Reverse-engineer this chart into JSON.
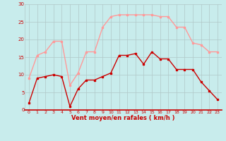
{
  "hours": [
    0,
    1,
    2,
    3,
    4,
    5,
    6,
    7,
    8,
    9,
    10,
    11,
    12,
    13,
    14,
    15,
    16,
    17,
    18,
    19,
    20,
    21,
    22,
    23
  ],
  "wind_avg": [
    2,
    9,
    9.5,
    10,
    9.5,
    1,
    6,
    8.5,
    8.5,
    9.5,
    10.5,
    15.5,
    15.5,
    16,
    13,
    16.5,
    14.5,
    14.5,
    11.5,
    11.5,
    11.5,
    8,
    5.5,
    3
  ],
  "wind_gust": [
    9,
    15.5,
    16.5,
    19.5,
    19.5,
    7,
    10.5,
    16.5,
    16.5,
    23.5,
    26.5,
    27,
    27,
    27,
    27,
    27,
    26.5,
    26.5,
    23.5,
    23.5,
    19,
    18.5,
    16.5,
    16.5
  ],
  "bg_color": "#c8ecec",
  "grid_color": "#b0c8c8",
  "avg_color": "#cc0000",
  "gust_color": "#ff9999",
  "xlabel": "Vent moyen/en rafales ( km/h )",
  "xlabel_color": "#cc0000",
  "ylim": [
    0,
    30
  ],
  "yticks": [
    0,
    5,
    10,
    15,
    20,
    25,
    30
  ],
  "xticks": [
    0,
    1,
    2,
    3,
    4,
    5,
    6,
    7,
    8,
    9,
    10,
    11,
    12,
    13,
    14,
    15,
    16,
    17,
    18,
    19,
    20,
    21,
    22,
    23
  ]
}
